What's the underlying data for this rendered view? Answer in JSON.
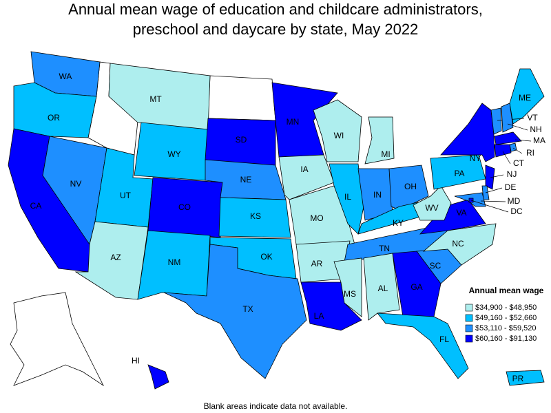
{
  "title": [
    "Annual mean wage of education and childcare administrators,",
    "preschool and daycare by state, May 2022"
  ],
  "legend": {
    "title": "Annual mean wage",
    "items": [
      {
        "label": "$34,900 - $48,950",
        "color": "#aeeeee"
      },
      {
        "label": "$49,160 - $52,660",
        "color": "#00bfff"
      },
      {
        "label": "$53,110 - $59,520",
        "color": "#1e8fff"
      },
      {
        "label": "$60,160 - $91,130",
        "color": "#0000ff"
      }
    ]
  },
  "states": [
    {
      "label": "WA",
      "fill": "#1e8fff"
    },
    {
      "label": "OR",
      "fill": "#00bfff"
    },
    {
      "label": "CA",
      "fill": "#0000ff"
    },
    {
      "label": "NV",
      "fill": "#1e8fff"
    },
    {
      "label": "MT",
      "fill": "#aeeeee"
    },
    {
      "label": "WY",
      "fill": "#00bfff"
    },
    {
      "label": "UT",
      "fill": "#00bfff"
    },
    {
      "label": "AZ",
      "fill": "#aeeeee"
    },
    {
      "label": "CO",
      "fill": "#0000ff"
    },
    {
      "label": "NM",
      "fill": "#00bfff"
    },
    {
      "label": "SD",
      "fill": "#0000ff"
    },
    {
      "label": "NE",
      "fill": "#1e8fff"
    },
    {
      "label": "KS",
      "fill": "#00bfff"
    },
    {
      "label": "OK",
      "fill": "#00bfff"
    },
    {
      "label": "TX",
      "fill": "#1e8fff"
    },
    {
      "label": "MN",
      "fill": "#0000ff"
    },
    {
      "label": "IA",
      "fill": "#aeeeee"
    },
    {
      "label": "MO",
      "fill": "#aeeeee"
    },
    {
      "label": "AR",
      "fill": "#aeeeee"
    },
    {
      "label": "LA",
      "fill": "#0000ff"
    },
    {
      "label": "WI",
      "fill": "#aeeeee"
    },
    {
      "label": "IL",
      "fill": "#00bfff"
    },
    {
      "label": "MI",
      "fill": "#aeeeee"
    },
    {
      "label": "IN",
      "fill": "#1e8fff"
    },
    {
      "label": "OH",
      "fill": "#1e8fff"
    },
    {
      "label": "KY",
      "fill": "#00bfff"
    },
    {
      "label": "TN",
      "fill": "#1e8fff"
    },
    {
      "label": "MS",
      "fill": "#aeeeee"
    },
    {
      "label": "AL",
      "fill": "#aeeeee"
    },
    {
      "label": "GA",
      "fill": "#0000ff"
    },
    {
      "label": "FL",
      "fill": "#00bfff"
    },
    {
      "label": "SC",
      "fill": "#1e8fff"
    },
    {
      "label": "NC",
      "fill": "#aeeeee"
    },
    {
      "label": "VA",
      "fill": "#0000ff"
    },
    {
      "label": "WV",
      "fill": "#aeeeee"
    },
    {
      "label": "PA",
      "fill": "#00bfff"
    },
    {
      "label": "NY",
      "fill": "#0000ff"
    },
    {
      "label": "ME",
      "fill": "#00bfff"
    },
    {
      "label": "HI",
      "fill": "#0000ff"
    },
    {
      "label": "PR",
      "fill": "#00bfff"
    },
    {
      "label": "VT",
      "fill": "#1e8fff"
    },
    {
      "label": "NH",
      "fill": "#1e8fff"
    },
    {
      "label": "MA",
      "fill": "#0000ff"
    },
    {
      "label": "RI",
      "fill": "#1e8fff"
    },
    {
      "label": "CT",
      "fill": "#0000ff"
    },
    {
      "label": "NJ",
      "fill": "#0000ff"
    },
    {
      "label": "DE",
      "fill": "#1e8fff"
    },
    {
      "label": "MD",
      "fill": "#1e8fff"
    },
    {
      "label": "DC",
      "fill": "#0000ff"
    }
  ],
  "footnote": "Blank areas indicate data not available."
}
